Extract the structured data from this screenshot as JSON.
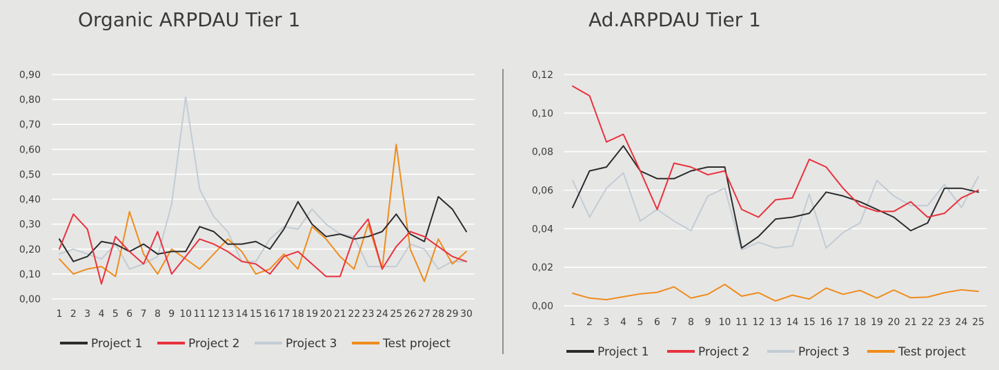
{
  "chart_data": [
    {
      "type": "line",
      "title": "Organic ARPDAU Tier 1",
      "xlabel": "",
      "ylabel": "",
      "ylim": [
        0,
        0.9
      ],
      "yticks": [
        "0,00",
        "0,10",
        "0,20",
        "0,30",
        "0,40",
        "0,50",
        "0,60",
        "0,70",
        "0,80",
        "0,90"
      ],
      "categories": [
        "1",
        "2",
        "3",
        "4",
        "5",
        "6",
        "7",
        "8",
        "9",
        "10",
        "11",
        "12",
        "13",
        "14",
        "15",
        "16",
        "17",
        "18",
        "19",
        "20",
        "21",
        "22",
        "23",
        "24",
        "25",
        "26",
        "27",
        "28",
        "29",
        "30"
      ],
      "grid": true,
      "legend_position": "bottom",
      "series": [
        {
          "name": "Project 1",
          "color": "#2b2b2b",
          "values": [
            0.24,
            0.15,
            0.17,
            0.23,
            0.22,
            0.19,
            0.22,
            0.18,
            0.19,
            0.19,
            0.29,
            0.27,
            0.22,
            0.22,
            0.23,
            0.2,
            0.28,
            0.39,
            0.3,
            0.25,
            0.26,
            0.24,
            0.25,
            0.27,
            0.34,
            0.26,
            0.23,
            0.41,
            0.36,
            0.27
          ]
        },
        {
          "name": "Project 2",
          "color": "#e8323c",
          "values": [
            0.2,
            0.34,
            0.28,
            0.06,
            0.25,
            0.19,
            0.14,
            0.27,
            0.1,
            0.17,
            0.24,
            0.22,
            0.19,
            0.15,
            0.14,
            0.1,
            0.17,
            0.19,
            0.14,
            0.09,
            0.09,
            0.25,
            0.32,
            0.12,
            0.21,
            0.27,
            0.25,
            0.21,
            0.17,
            0.15
          ]
        },
        {
          "name": "Project 3",
          "color": "#c2ccd4",
          "values": [
            0.18,
            0.2,
            0.18,
            0.16,
            0.22,
            0.12,
            0.14,
            0.17,
            0.38,
            0.81,
            0.44,
            0.33,
            0.27,
            0.15,
            0.15,
            0.24,
            0.29,
            0.28,
            0.36,
            0.3,
            0.26,
            0.25,
            0.13,
            0.13,
            0.13,
            0.22,
            0.2,
            0.12,
            0.15,
            0.15
          ]
        },
        {
          "name": "Test project",
          "color": "#ef8c1c",
          "values": [
            0.16,
            0.1,
            0.12,
            0.13,
            0.09,
            0.35,
            0.18,
            0.1,
            0.2,
            0.16,
            0.12,
            0.18,
            0.24,
            0.19,
            0.1,
            0.12,
            0.18,
            0.12,
            0.29,
            0.24,
            0.17,
            0.12,
            0.3,
            0.12,
            0.62,
            0.2,
            0.07,
            0.24,
            0.14,
            0.19
          ]
        }
      ]
    },
    {
      "type": "line",
      "title": "Ad.ARPDAU Tier 1",
      "xlabel": "",
      "ylabel": "",
      "ylim": [
        0,
        0.12
      ],
      "yticks": [
        "0,00",
        "0,02",
        "0,04",
        "0,06",
        "0,08",
        "0,10",
        "0,12"
      ],
      "categories": [
        "1",
        "2",
        "3",
        "4",
        "5",
        "6",
        "7",
        "8",
        "9",
        "10",
        "11",
        "12",
        "13",
        "14",
        "15",
        "16",
        "17",
        "18",
        "19",
        "20",
        "21",
        "22",
        "23",
        "24",
        "25"
      ],
      "grid": true,
      "legend_position": "bottom",
      "series": [
        {
          "name": "Project 1",
          "color": "#2b2b2b",
          "values": [
            0.051,
            0.07,
            0.072,
            0.083,
            0.07,
            0.066,
            0.066,
            0.07,
            0.072,
            0.072,
            0.03,
            0.036,
            0.045,
            0.046,
            0.048,
            0.059,
            0.057,
            0.054,
            0.05,
            0.046,
            0.039,
            0.043,
            0.061,
            0.061,
            0.059
          ]
        },
        {
          "name": "Project 2",
          "color": "#e8323c",
          "values": [
            0.114,
            0.109,
            0.085,
            0.089,
            0.07,
            0.05,
            0.074,
            0.072,
            0.068,
            0.07,
            0.05,
            0.046,
            0.055,
            0.056,
            0.076,
            0.072,
            0.061,
            0.052,
            0.049,
            0.049,
            0.054,
            0.046,
            0.048,
            0.056,
            0.06
          ]
        },
        {
          "name": "Project 3",
          "color": "#c2ccd4",
          "values": [
            0.065,
            0.046,
            0.061,
            0.069,
            0.044,
            0.05,
            0.044,
            0.039,
            0.057,
            0.061,
            0.029,
            0.033,
            0.03,
            0.031,
            0.058,
            0.03,
            0.038,
            0.043,
            0.065,
            0.057,
            0.052,
            0.052,
            0.063,
            0.051,
            0.067
          ]
        },
        {
          "name": "Test project",
          "color": "#ef8c1c",
          "values": [
            0.0065,
            0.004,
            0.0032,
            0.0047,
            0.0062,
            0.007,
            0.0098,
            0.004,
            0.006,
            0.0111,
            0.005,
            0.0068,
            0.0025,
            0.0055,
            0.0035,
            0.0092,
            0.006,
            0.008,
            0.004,
            0.0082,
            0.0042,
            0.0045,
            0.0068,
            0.0083,
            0.0075
          ]
        }
      ]
    }
  ]
}
